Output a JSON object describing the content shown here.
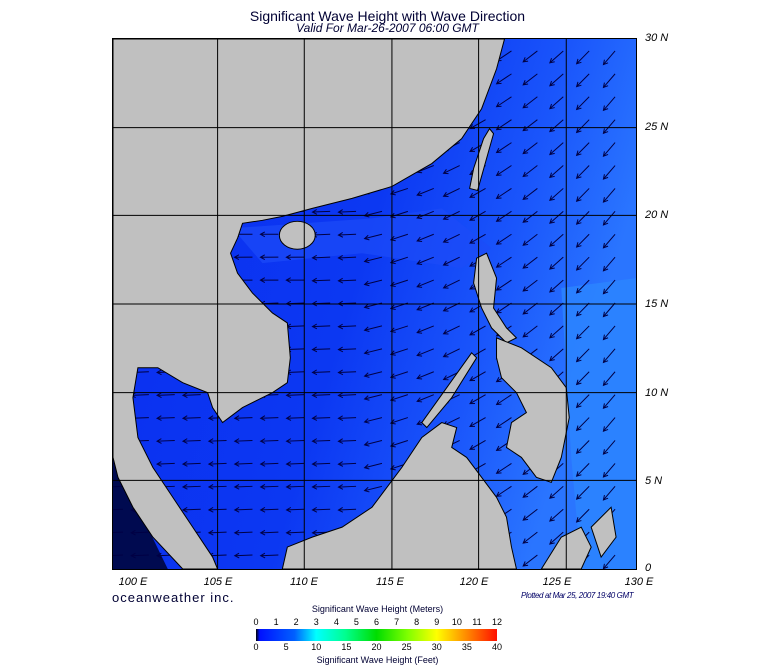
{
  "title": "Significant Wave Height with Wave Direction",
  "subtitle": "Valid For Mar-26-2007 06:00 GMT",
  "lat_labels": [
    "30 N",
    "25 N",
    "20 N",
    "15 N",
    "10 N",
    "5 N",
    "0"
  ],
  "lon_labels": [
    "100 E",
    "105 E",
    "110 E",
    "115 E",
    "120 E",
    "125 E",
    "130 E"
  ],
  "brand": "oceanweather inc.",
  "plotted": "Plotted at Mar 25, 2007 19:40 GMT",
  "colorbar": {
    "title_meters": "Significant Wave Height (Meters)",
    "title_feet": "Significant Wave Height (Feet)",
    "meters_ticks": [
      "0",
      "1",
      "2",
      "3",
      "4",
      "5",
      "6",
      "7",
      "8",
      "9",
      "10",
      "11",
      "12"
    ],
    "feet_ticks": [
      "0",
      "5",
      "10",
      "15",
      "20",
      "25",
      "30",
      "35",
      "40"
    ]
  },
  "colors": {
    "sea_dark": "#0a30ee",
    "sea_light": "#2a70ff",
    "land": "#c0c0c0",
    "arrow": "#000044"
  }
}
